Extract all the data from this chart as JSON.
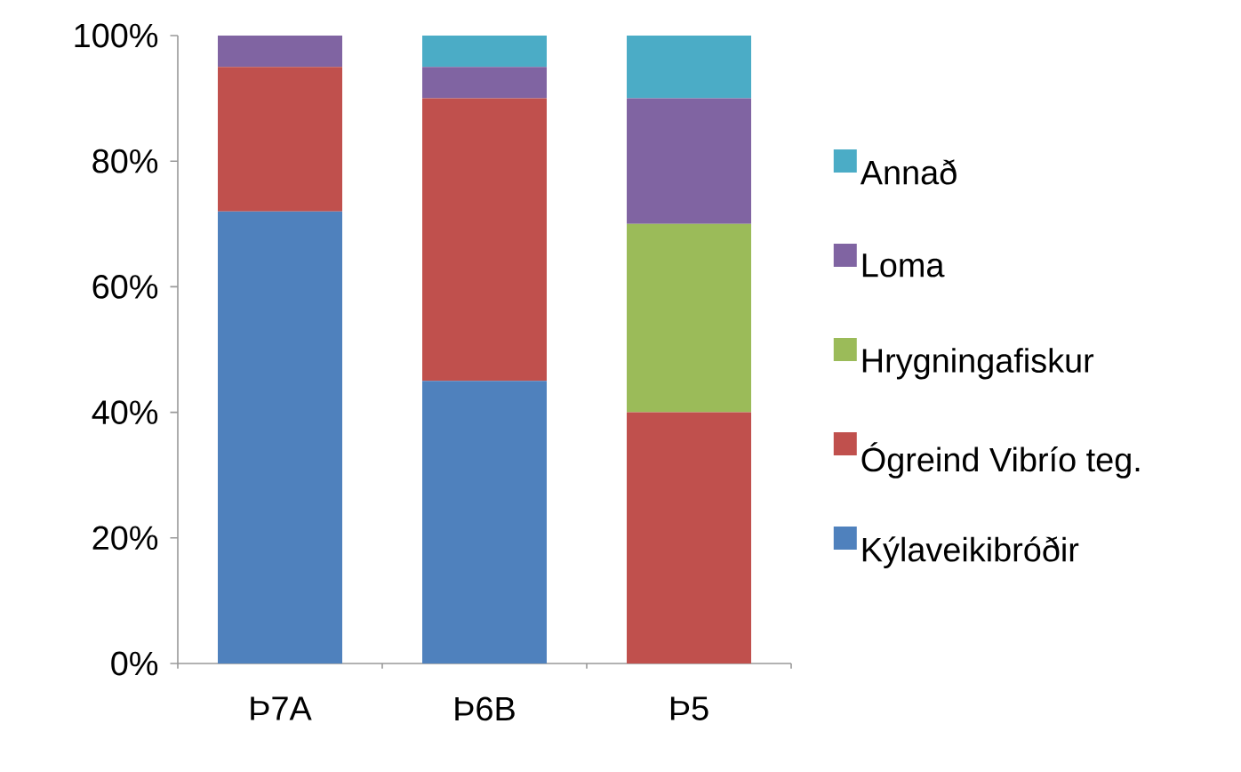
{
  "chart_data": {
    "type": "bar",
    "stacked": true,
    "legend": "right",
    "categories": [
      "Þ7A",
      "Þ6B",
      "Þ5"
    ],
    "series": [
      {
        "name": "Kýlaveikibróðir",
        "color": "#4f81bd",
        "values": [
          72,
          45,
          0
        ]
      },
      {
        "name": "Ógreind Vibrío teg.",
        "color": "#c0504d",
        "values": [
          23,
          45,
          40
        ]
      },
      {
        "name": "Hrygningafiskur",
        "color": "#9bbb59",
        "values": [
          0,
          0,
          30
        ]
      },
      {
        "name": "Loma",
        "color": "#8064a2",
        "values": [
          5,
          5,
          20
        ]
      },
      {
        "name": "Annað",
        "color": "#4bacc6",
        "values": [
          0,
          5,
          10
        ]
      }
    ],
    "ylim": [
      0,
      100
    ],
    "yticks": [
      {
        "value": 0,
        "label": "0%"
      },
      {
        "value": 20,
        "label": "20%"
      },
      {
        "value": 40,
        "label": "40%"
      },
      {
        "value": 60,
        "label": "60%"
      },
      {
        "value": 80,
        "label": "80%"
      },
      {
        "value": 100,
        "label": "100%"
      }
    ]
  }
}
